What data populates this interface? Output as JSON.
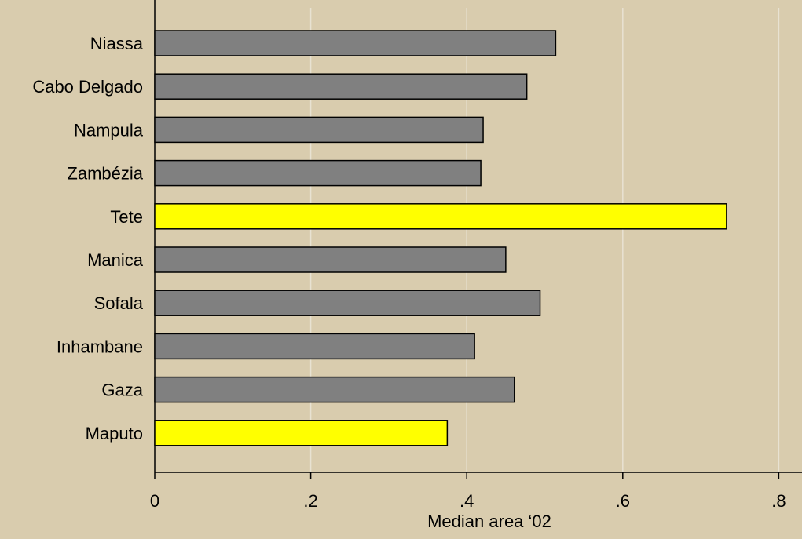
{
  "chart_data": {
    "type": "bar",
    "orientation": "horizontal",
    "categories": [
      "Niassa",
      "Cabo Delgado",
      "Nampula",
      "Zambézia",
      "Tete",
      "Manica",
      "Sofala",
      "Inhambane",
      "Gaza",
      "Maputo"
    ],
    "values": [
      0.514,
      0.477,
      0.421,
      0.418,
      0.733,
      0.45,
      0.494,
      0.41,
      0.461,
      0.375
    ],
    "highlighted": [
      "Tete",
      "Maputo"
    ],
    "xlabel": "Median area ‘02",
    "ylabel": "",
    "xlim": [
      0,
      0.83
    ],
    "xticks": [
      0,
      0.2,
      0.4,
      0.6,
      0.8
    ],
    "xtick_labels": [
      "0",
      ".2",
      ".4",
      ".6",
      ".8"
    ],
    "grid": "vertical",
    "legend": "none"
  },
  "colors": {
    "background": "#d9ccae",
    "bar": "#808080",
    "bar_highlight": "#ffff00",
    "bar_outline": "#000000",
    "gridline": "#e8e2d2",
    "axis": "#000000"
  }
}
